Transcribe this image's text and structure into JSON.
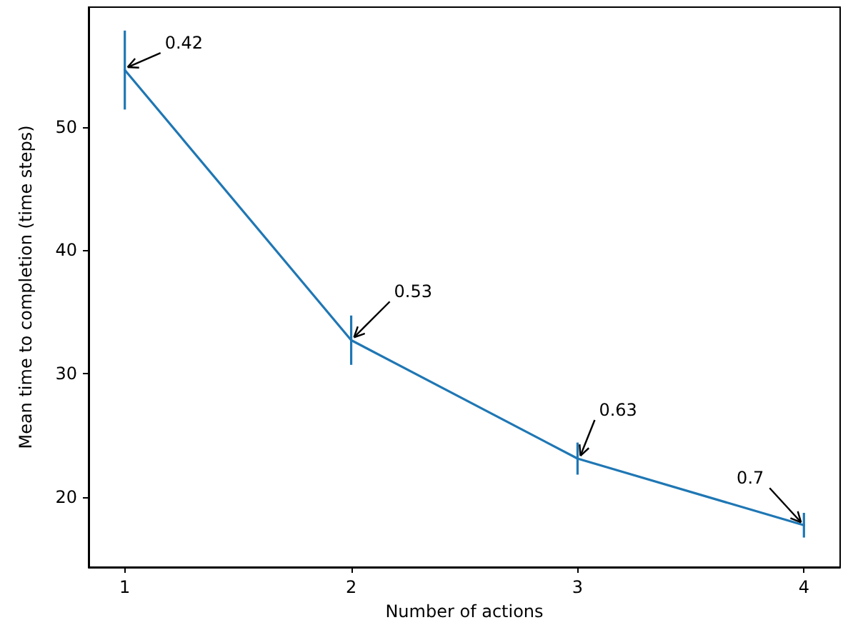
{
  "chart_data": {
    "type": "line",
    "xlabel": "Number of actions",
    "ylabel": "Mean time to completion (time steps)",
    "x": [
      1,
      2,
      3,
      4
    ],
    "xlim": [
      0.84,
      4.16
    ],
    "xticks": [
      1,
      2,
      3,
      4
    ],
    "ylim": [
      14.3,
      59.7
    ],
    "yticks": [
      20,
      30,
      40,
      50
    ],
    "series": [
      {
        "color": "#1f77b4",
        "values": [
          54.6,
          32.7,
          23.1,
          17.7
        ],
        "errors": [
          3.2,
          2,
          1.3,
          1
        ]
      }
    ],
    "annotations": [
      {
        "text": "0.42",
        "x": 1,
        "y": 54.6
      },
      {
        "text": "0.53",
        "x": 2,
        "y": 32.7
      },
      {
        "text": "0.63",
        "x": 3,
        "y": 23.1
      },
      {
        "text": "0.7",
        "x": 4,
        "y": 17.7
      }
    ],
    "grid": false,
    "marker": "none",
    "line_style": "solid"
  }
}
